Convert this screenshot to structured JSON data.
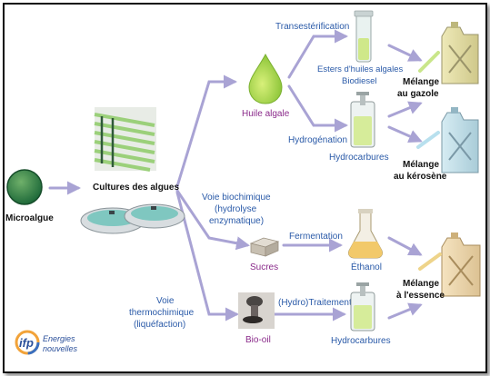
{
  "colors": {
    "arrow": "#a9a3d4",
    "process_text": "#2a5aa8",
    "product_text": "#8a2a8a",
    "label_text": "#111111"
  },
  "nodes": {
    "microalgue": "Microalgue",
    "cultures": "Cultures des algues",
    "huile_algale": "Huile algale",
    "transesterification": "Transestérification",
    "esters_line1": "Esters d'huiles algales",
    "esters_line2": "Biodiesel",
    "hydrogenation": "Hydrogénation",
    "hydrocarbures_top": "Hydrocarbures",
    "voie_bio_line1": "Voie biochimique",
    "voie_bio_line2": "(hydrolyse",
    "voie_bio_line3": "enzymatique)",
    "sucres": "Sucres",
    "fermentation": "Fermentation",
    "ethanol": "Éthanol",
    "voie_thermo_line1": "Voie",
    "voie_thermo_line2": "thermochimique",
    "voie_thermo_line3": "(liquéfaction)",
    "bio_oil": "Bio-oil",
    "hydro_traitement": "(Hydro)Traitement",
    "hydrocarbures_bottom": "Hydrocarbures"
  },
  "outputs": {
    "gazole_line1": "Mélange",
    "gazole_line2": "au gazole",
    "kerosene_line1": "Mélange",
    "kerosene_line2": "au kérosène",
    "essence_line1": "Mélange",
    "essence_line2": "à l'essence"
  },
  "logo": {
    "mark": "ifp",
    "line1": "Energies",
    "line2": "nouvelles"
  }
}
